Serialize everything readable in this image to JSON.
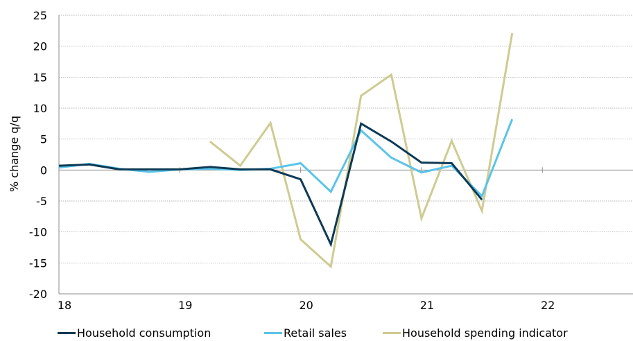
{
  "chart_data": {
    "type": "line",
    "title": "",
    "xlabel": "",
    "ylabel": "% change q/q",
    "ylim": [
      -20,
      25
    ],
    "yticks": [
      -20,
      -15,
      -10,
      -5,
      0,
      5,
      10,
      15,
      20,
      25
    ],
    "xlim": [
      18,
      22.75
    ],
    "xticks": [
      "18",
      "19",
      "20",
      "21",
      "22"
    ],
    "grid": "horizontal dashed",
    "legend_position": "bottom",
    "series": [
      {
        "name": "Household consumption",
        "color": "#0d3a55",
        "x": [
          18.0,
          18.25,
          18.5,
          18.75,
          19.0,
          19.25,
          19.5,
          19.75,
          20.0,
          20.25,
          20.5,
          20.75,
          21.0,
          21.25,
          21.5
        ],
        "values": [
          0.7,
          0.9,
          0.1,
          0.1,
          0.1,
          0.5,
          0.1,
          0.1,
          -1.5,
          -12.0,
          7.5,
          4.6,
          1.2,
          1.1,
          -4.8
        ]
      },
      {
        "name": "Retail sales",
        "color": "#5bc4e8",
        "x": [
          18.0,
          18.25,
          18.5,
          18.75,
          19.0,
          19.25,
          19.5,
          19.75,
          20.0,
          20.25,
          20.5,
          20.75,
          21.0,
          21.25,
          21.5,
          21.75
        ],
        "values": [
          0.4,
          1.0,
          0.2,
          -0.3,
          0.1,
          0.2,
          0.0,
          0.2,
          1.1,
          -3.5,
          6.4,
          2.0,
          -0.4,
          0.7,
          -4.2,
          8.2
        ]
      },
      {
        "name": "Household spending indicator",
        "color": "#cfcb91",
        "x": [
          19.25,
          19.5,
          19.75,
          20.0,
          20.25,
          20.5,
          20.75,
          21.0,
          21.25,
          21.5,
          21.75
        ],
        "values": [
          4.6,
          0.7,
          7.6,
          -11.2,
          -15.6,
          12.0,
          15.4,
          -7.8,
          4.7,
          -6.6,
          22.1
        ]
      }
    ]
  }
}
